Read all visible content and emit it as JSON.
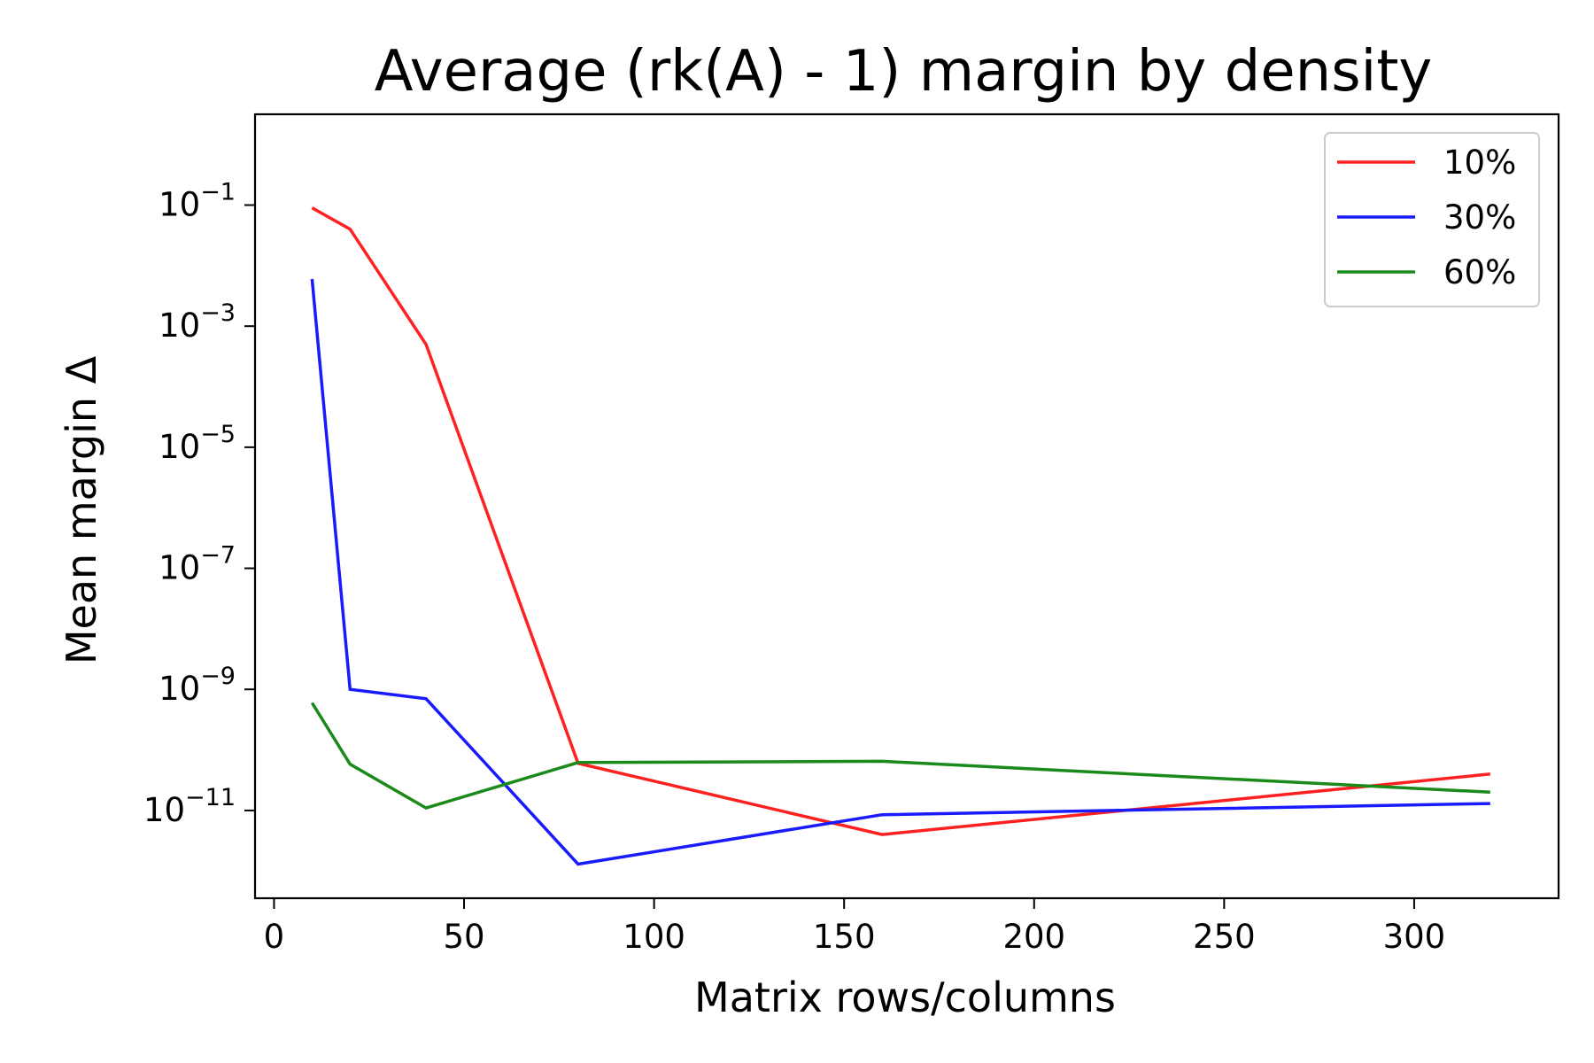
{
  "chart_data": {
    "type": "line",
    "title": "Average (rk(A) - 1) margin by density",
    "xlabel": "Matrix rows/columns",
    "ylabel": "Mean margin Δ",
    "yscale": "log",
    "xlim": [
      -5,
      338
    ],
    "ylim_log10": [
      -12.45,
      0.5
    ],
    "x_ticks": [
      {
        "value": 0,
        "label": "0"
      },
      {
        "value": 50,
        "label": "50"
      },
      {
        "value": 100,
        "label": "100"
      },
      {
        "value": 150,
        "label": "150"
      },
      {
        "value": 200,
        "label": "200"
      },
      {
        "value": 250,
        "label": "250"
      },
      {
        "value": 300,
        "label": "300"
      }
    ],
    "y_ticks": [
      {
        "exp": -1,
        "base": "10",
        "sup": "−1"
      },
      {
        "exp": -3,
        "base": "10",
        "sup": "−3"
      },
      {
        "exp": -5,
        "base": "10",
        "sup": "−5"
      },
      {
        "exp": -7,
        "base": "10",
        "sup": "−7"
      },
      {
        "exp": -9,
        "base": "10",
        "sup": "−9"
      },
      {
        "exp": -11,
        "base": "10",
        "sup": "−11"
      }
    ],
    "grid": false,
    "legend_position": "top-right",
    "series": [
      {
        "name": "10%",
        "color": "#ff2020",
        "x": [
          10,
          20,
          40,
          80,
          160,
          320
        ],
        "y": [
          0.09,
          0.04,
          0.0005,
          6e-11,
          4e-12,
          4e-11
        ]
      },
      {
        "name": "30%",
        "color": "#1a1aff",
        "x": [
          10,
          20,
          40,
          80,
          160,
          320
        ],
        "y": [
          0.006,
          1e-09,
          7e-10,
          1.3e-12,
          8.5e-12,
          1.3e-11
        ]
      },
      {
        "name": "60%",
        "color": "#1a8a1a",
        "x": [
          10,
          20,
          40,
          80,
          160,
          320
        ],
        "y": [
          6e-10,
          5.8e-11,
          1.1e-11,
          6.2e-11,
          6.5e-11,
          2e-11
        ]
      }
    ]
  }
}
